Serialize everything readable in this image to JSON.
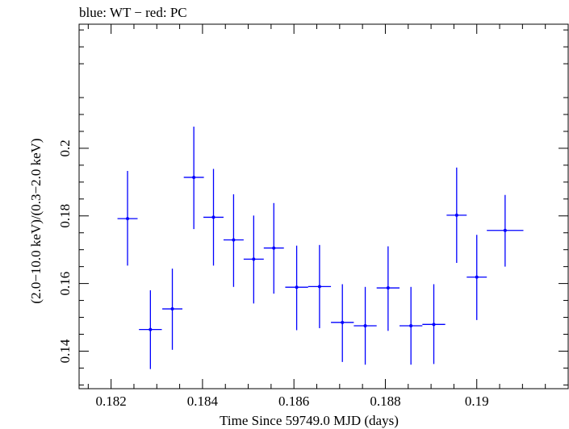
{
  "chart_data": {
    "type": "scatter",
    "title": "blue: WT − red: PC",
    "xlabel": "Time Since 59749.0 MJD (days)",
    "ylabel": "(2.0−10.0 keV)/(0.3−2.0 keV)",
    "xlim": [
      0.1813,
      0.192
    ],
    "ylim": [
      0.1289,
      0.2367
    ],
    "xticks": [
      0.182,
      0.184,
      0.186,
      0.188,
      0.19
    ],
    "xtick_labels": [
      "0.182",
      "0.184",
      "0.186",
      "0.188",
      "0.19"
    ],
    "yticks": [
      0.14,
      0.16,
      0.18,
      0.2
    ],
    "ytick_labels": [
      "0.14",
      "0.16",
      "0.18",
      "0.2"
    ],
    "grid": false,
    "series": [
      {
        "color": "#0000ff",
        "marker": "point-with-error-bars",
        "points": [
          {
            "x": 0.18236,
            "y": 0.1792,
            "xerr": 0.00022,
            "yerr_low": 0.0139,
            "yerr_high": 0.0141
          },
          {
            "x": 0.18286,
            "y": 0.1464,
            "xerr": 0.00025,
            "yerr_low": 0.0117,
            "yerr_high": 0.0116
          },
          {
            "x": 0.18334,
            "y": 0.1525,
            "xerr": 0.00022,
            "yerr_low": 0.0121,
            "yerr_high": 0.0119
          },
          {
            "x": 0.18381,
            "y": 0.1914,
            "xerr": 0.00022,
            "yerr_low": 0.0153,
            "yerr_high": 0.015
          },
          {
            "x": 0.18424,
            "y": 0.1796,
            "xerr": 0.00022,
            "yerr_low": 0.0143,
            "yerr_high": 0.0143
          },
          {
            "x": 0.18468,
            "y": 0.1729,
            "xerr": 0.00022,
            "yerr_low": 0.0139,
            "yerr_high": 0.0135
          },
          {
            "x": 0.18512,
            "y": 0.1672,
            "xerr": 0.00022,
            "yerr_low": 0.0131,
            "yerr_high": 0.0129
          },
          {
            "x": 0.18556,
            "y": 0.1705,
            "xerr": 0.00022,
            "yerr_low": 0.0135,
            "yerr_high": 0.0133
          },
          {
            "x": 0.18606,
            "y": 0.1589,
            "xerr": 0.00025,
            "yerr_low": 0.0127,
            "yerr_high": 0.0123
          },
          {
            "x": 0.18656,
            "y": 0.1591,
            "xerr": 0.00025,
            "yerr_low": 0.0123,
            "yerr_high": 0.0123
          },
          {
            "x": 0.18706,
            "y": 0.1485,
            "xerr": 0.00025,
            "yerr_low": 0.0117,
            "yerr_high": 0.0113
          },
          {
            "x": 0.18756,
            "y": 0.1475,
            "xerr": 0.00025,
            "yerr_low": 0.0115,
            "yerr_high": 0.0115
          },
          {
            "x": 0.18806,
            "y": 0.1587,
            "xerr": 0.00025,
            "yerr_low": 0.0127,
            "yerr_high": 0.0123
          },
          {
            "x": 0.18856,
            "y": 0.1475,
            "xerr": 0.00025,
            "yerr_low": 0.0115,
            "yerr_high": 0.0115
          },
          {
            "x": 0.18906,
            "y": 0.1479,
            "xerr": 0.00025,
            "yerr_low": 0.0117,
            "yerr_high": 0.0119
          },
          {
            "x": 0.18956,
            "y": 0.1802,
            "xerr": 0.00022,
            "yerr_low": 0.0141,
            "yerr_high": 0.0141
          },
          {
            "x": 0.19,
            "y": 0.1619,
            "xerr": 0.00022,
            "yerr_low": 0.0127,
            "yerr_high": 0.0125
          },
          {
            "x": 0.19062,
            "y": 0.1757,
            "xerr": 0.0004,
            "yerr_low": 0.0107,
            "yerr_high": 0.0105
          }
        ]
      }
    ]
  }
}
